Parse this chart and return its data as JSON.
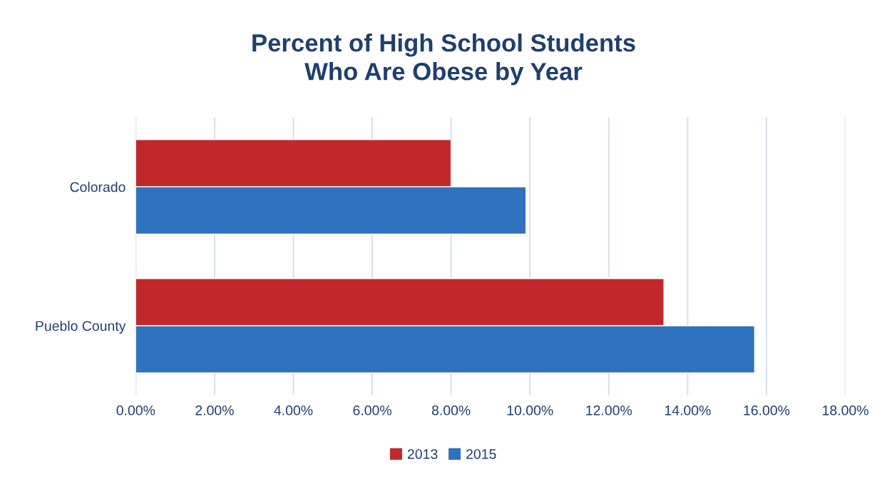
{
  "chart_data": {
    "type": "bar",
    "orientation": "horizontal",
    "title": "Percent of High School Students\nWho Are Obese by Year",
    "categories": [
      "Colorado",
      "Pueblo County"
    ],
    "series": [
      {
        "name": "2013",
        "color": "#c0282a",
        "values": [
          8.0,
          13.4
        ]
      },
      {
        "name": "2015",
        "color": "#2e72bd",
        "values": [
          9.9,
          15.7
        ]
      }
    ],
    "xlim": [
      0,
      18
    ],
    "xticks": [
      {
        "value": 0,
        "label": "0.00%"
      },
      {
        "value": 2,
        "label": "2.00%"
      },
      {
        "value": 4,
        "label": "4.00%"
      },
      {
        "value": 6,
        "label": "6.00%"
      },
      {
        "value": 8,
        "label": "8.00%"
      },
      {
        "value": 10,
        "label": "10.00%"
      },
      {
        "value": 12,
        "label": "12.00%"
      },
      {
        "value": 14,
        "label": "14.00%"
      },
      {
        "value": 16,
        "label": "16.00%"
      },
      {
        "value": 18,
        "label": "18.00%"
      }
    ],
    "grid": "x",
    "legend": "bottom"
  }
}
